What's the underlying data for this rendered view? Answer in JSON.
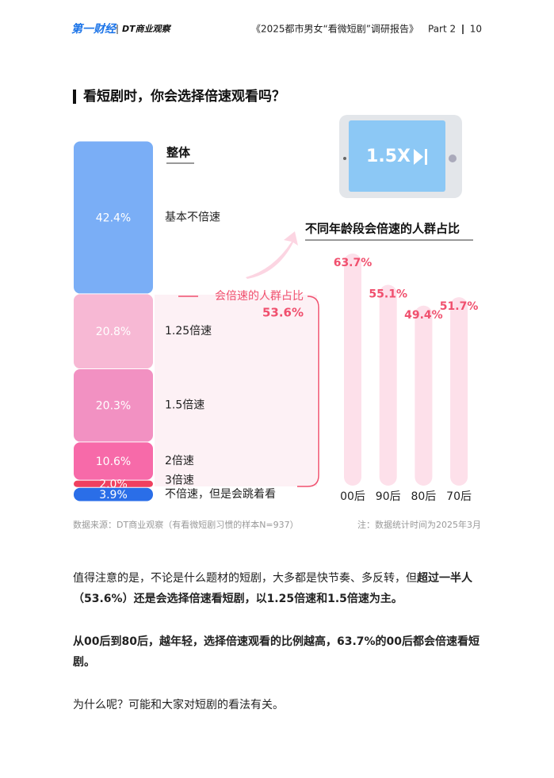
{
  "header": {
    "logo": "第一财经",
    "brand": "DT商业观察",
    "report": "《2025都市男女“看微短剧”调研报告》",
    "part": "Part 2",
    "page": "10"
  },
  "section_title": "看短剧时，你会选择倍速观看吗？",
  "illustration_text": "1.5X",
  "chart_data": [
    {
      "type": "stacked_bar",
      "title": "整体",
      "series": [
        {
          "name": "基本不倍速",
          "color": "#7aaef6",
          "values": [
            42.4
          ],
          "value_labels": [
            "42.4%"
          ]
        },
        {
          "name": "1.25倍速",
          "color": "#f7b8d4",
          "values": [
            20.8
          ],
          "value_labels": [
            "20.8%"
          ]
        },
        {
          "name": "1.5倍速",
          "color": "#f291c2",
          "values": [
            20.3
          ],
          "value_labels": [
            "20.3%"
          ]
        },
        {
          "name": "2倍速",
          "color": "#f76aa9",
          "values": [
            10.6
          ],
          "value_labels": [
            "10.6%"
          ]
        },
        {
          "name": "3倍速",
          "color": "#f0405f",
          "values": [
            2.0
          ],
          "value_labels": [
            "2.0%"
          ]
        },
        {
          "name": "不倍速，但是会跳着看",
          "color": "#2a6ee8",
          "values": [
            3.9
          ],
          "value_labels": [
            "3.9%"
          ]
        }
      ],
      "annotation": {
        "text": "会倍速的人群占比",
        "value": 53.6,
        "label": "53.6%",
        "color": "#f0506e"
      }
    },
    {
      "type": "bar",
      "title": "不同年龄段会倍速的人群占比",
      "categories": [
        "00后",
        "90后",
        "80后",
        "70后"
      ],
      "values": [
        63.7,
        55.1,
        49.4,
        51.7
      ],
      "value_labels": [
        "63.7%",
        "55.1%",
        "49.4%",
        "51.7%"
      ],
      "color": "#fde0ea",
      "label_color": "#f0506e"
    }
  ],
  "source": "数据来源：DT商业观察（有看微短剧习惯的样本N=937）",
  "note": "注：数据统计时间为2025年3月",
  "paragraphs": [
    {
      "runs": [
        {
          "text": "值得注意的是，不论是什么题材的短剧，大多都是快节奏、多反转，但",
          "bold": false
        },
        {
          "text": "超过一半人（53.6%）还是会选择倍速看短剧，以1.25倍速和1.5倍速为主。",
          "bold": true
        }
      ]
    },
    {
      "runs": [
        {
          "text": "从00后到80后，越年轻，选择倍速观看的比例越高，63.7%的00后都会倍速看短剧。",
          "bold": true
        }
      ]
    },
    {
      "runs": [
        {
          "text": "为什么呢？可能和大家对短剧的看法有关。",
          "bold": false
        }
      ]
    }
  ]
}
